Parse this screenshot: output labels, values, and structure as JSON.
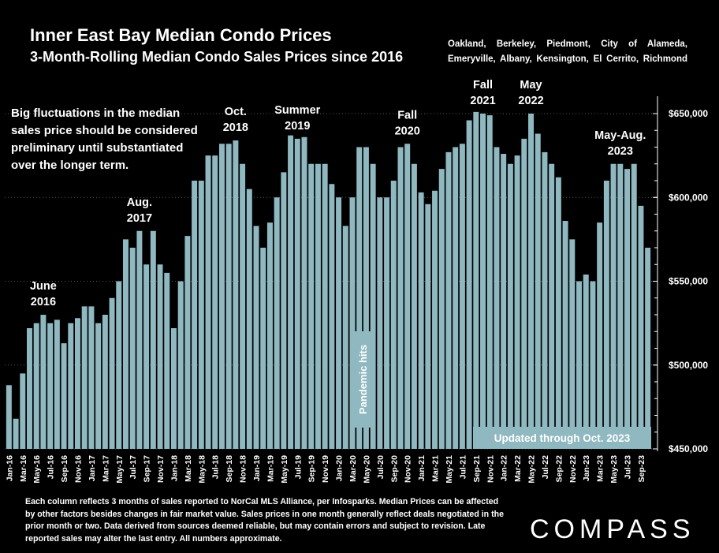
{
  "header": {
    "title": "Inner East Bay Median Condo Prices",
    "subtitle": "3-Month-Rolling Median Condo Sales Prices since 2016",
    "cities_line1": "Oakland, Berkeley, Piedmont, City of Alameda,",
    "cities_line2": "Emeryville, Albany, Kensington, El Cerrito, Richmond"
  },
  "note_text": "Big fluctuations in the median sales price should be considered preliminary until substantiated over the longer term.",
  "footer_text": "Each column reflects 3 months of sales reported to NorCal MLS Alliance, per Infosparks. Median Prices can be affected by other factors besides changes in fair market value. Sales prices in one month generally reflect deals negotiated in the prior month or two. Data derived from sources deemed reliable, but may contain errors and subject to revision. Late reported sales may alter the last entry. All numbers approximate.",
  "logo_text": "COMPASS",
  "colors": {
    "bar": "#8fb8c0",
    "background": "#000000",
    "text": "#ffffff",
    "grid": "#ffffff"
  },
  "chart_data": {
    "type": "bar",
    "ylim": [
      450000,
      650000
    ],
    "yticks": [
      450000,
      500000,
      550000,
      600000,
      650000
    ],
    "ytick_labels": [
      "$450,000",
      "$500,000",
      "$550,000",
      "$600,000",
      "$650,000"
    ],
    "categories": [
      "Jan-16",
      "Feb-16",
      "Mar-16",
      "Apr-16",
      "May-16",
      "Jun-16",
      "Jul-16",
      "Aug-16",
      "Sep-16",
      "Oct-16",
      "Nov-16",
      "Dec-16",
      "Jan-17",
      "Feb-17",
      "Mar-17",
      "Apr-17",
      "May-17",
      "Jun-17",
      "Jul-17",
      "Aug-17",
      "Sep-17",
      "Oct-17",
      "Nov-17",
      "Dec-17",
      "Jan-18",
      "Feb-18",
      "Mar-18",
      "Apr-18",
      "May-18",
      "Jun-18",
      "Jul-18",
      "Aug-18",
      "Sep-18",
      "Oct-18",
      "Nov-18",
      "Dec-18",
      "Jan-19",
      "Feb-19",
      "Mar-19",
      "Apr-19",
      "May-19",
      "Jun-19",
      "Jul-19",
      "Aug-19",
      "Sep-19",
      "Oct-19",
      "Nov-19",
      "Dec-19",
      "Jan-20",
      "Feb-20",
      "Mar-20",
      "Apr-20",
      "May-20",
      "Jun-20",
      "Jul-20",
      "Aug-20",
      "Sep-20",
      "Oct-20",
      "Nov-20",
      "Dec-20",
      "Jan-21",
      "Feb-21",
      "Mar-21",
      "Apr-21",
      "May-21",
      "Jun-21",
      "Jul-21",
      "Aug-21",
      "Sep-21",
      "Oct-21",
      "Nov-21",
      "Dec-21",
      "Jan-22",
      "Feb-22",
      "Mar-22",
      "Apr-22",
      "May-22",
      "Jun-22",
      "Jul-22",
      "Aug-22",
      "Sep-22",
      "Oct-22",
      "Nov-22",
      "Dec-22",
      "Jan-23",
      "Feb-23",
      "Mar-23",
      "Apr-23",
      "May-23",
      "Jun-23",
      "Jul-23",
      "Aug-23",
      "Sep-23",
      "Oct-23"
    ],
    "xtick_labels": [
      "Jan-16",
      "Mar-16",
      "May-16",
      "Jul-16",
      "Sep-16",
      "Nov-16",
      "Jan-17",
      "Mar-17",
      "May-17",
      "Jul-17",
      "Sep-17",
      "Nov-17",
      "Jan-18",
      "Mar-18",
      "May-18",
      "Jul-18",
      "Sep-18",
      "Nov-18",
      "Jan-19",
      "Mar-19",
      "May-19",
      "Jul-19",
      "Sep-19",
      "Nov-19",
      "Jan-20",
      "Mar-20",
      "May-20",
      "Jul-20",
      "Sep-20",
      "Nov-20",
      "Jan-21",
      "Mar-21",
      "May-21",
      "Jul-21",
      "Sep-21",
      "Nov-21",
      "Jan-22",
      "Mar-22",
      "May-22",
      "Jul-22",
      "Sep-22",
      "Nov-22",
      "Jan-23",
      "Mar-23",
      "May-23",
      "Jul-23",
      "Sep-23"
    ],
    "values": [
      488000,
      468000,
      495000,
      522000,
      525000,
      530000,
      525000,
      527000,
      513000,
      525000,
      528000,
      535000,
      535000,
      525000,
      530000,
      540000,
      550000,
      575000,
      570000,
      580000,
      560000,
      580000,
      560000,
      555000,
      522000,
      550000,
      577000,
      610000,
      610000,
      625000,
      625000,
      632000,
      632000,
      634000,
      620000,
      605000,
      583000,
      570000,
      585000,
      600000,
      615000,
      637000,
      635000,
      636000,
      620000,
      620000,
      620000,
      608000,
      600000,
      583000,
      600000,
      630000,
      630000,
      620000,
      600000,
      600000,
      610000,
      630000,
      632000,
      620000,
      603000,
      596000,
      604000,
      617000,
      627000,
      630000,
      632000,
      646000,
      651000,
      650000,
      649000,
      630000,
      626000,
      620000,
      625000,
      635000,
      650000,
      638000,
      627000,
      620000,
      612000,
      586000,
      575000,
      550000,
      554000,
      550000,
      585000,
      610000,
      620000,
      620000,
      617000,
      620000,
      595000,
      570000
    ],
    "annotations": [
      {
        "text": [
          "June",
          "2016"
        ],
        "index": 5
      },
      {
        "text": [
          "Aug.",
          "2017"
        ],
        "index": 19
      },
      {
        "text": [
          "Oct.",
          "2018"
        ],
        "index": 33
      },
      {
        "text": [
          "Summer",
          "2019"
        ],
        "index": 42
      },
      {
        "text": [
          "Fall",
          "2020"
        ],
        "index": 58
      },
      {
        "text": [
          "Fall",
          "2021"
        ],
        "index": 69
      },
      {
        "text": [
          "May",
          "2022"
        ],
        "index": 76
      },
      {
        "text": [
          "May-Aug.",
          "2023"
        ],
        "index": 89
      }
    ],
    "pandemic_label": "Pandemic hits",
    "updated_label": "Updated through Oct. 2023"
  }
}
